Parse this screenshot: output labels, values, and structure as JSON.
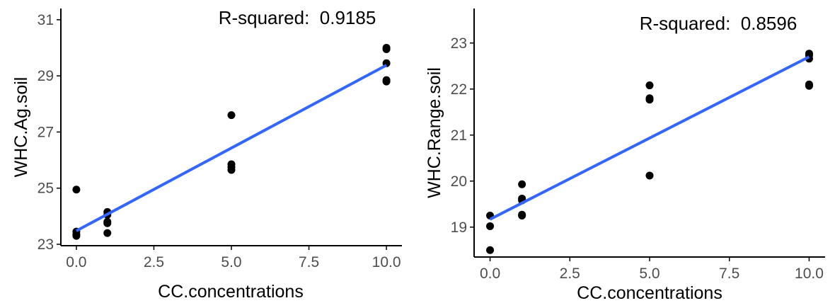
{
  "colors": {
    "points": "#000000",
    "fit_line": "#3366ff",
    "axis": "#000000",
    "tick_label": "#4d4d4d"
  },
  "chart_data": [
    {
      "type": "scatter",
      "title": "",
      "xlabel": "CC.concentrations",
      "ylabel": "WHC.Ag.soil",
      "annotation": "R-squared:  0.9185",
      "xlim": [
        -0.5,
        10.5
      ],
      "ylim": [
        22.95,
        31.4
      ],
      "x_ticks": [
        0,
        2.5,
        5,
        7.5,
        10
      ],
      "x_tick_labels": [
        "0.0",
        "2.5",
        "5.0",
        "7.5",
        "10.0"
      ],
      "y_ticks": [
        23,
        25,
        27,
        29,
        31
      ],
      "y_tick_labels": [
        "23",
        "25",
        "27",
        "29",
        "31"
      ],
      "grid": false,
      "points": [
        {
          "x": 0,
          "y": 24.95
        },
        {
          "x": 0,
          "y": 23.45
        },
        {
          "x": 0,
          "y": 23.35
        },
        {
          "x": 0,
          "y": 23.3
        },
        {
          "x": 1,
          "y": 24.15
        },
        {
          "x": 1,
          "y": 24.05
        },
        {
          "x": 1,
          "y": 23.8
        },
        {
          "x": 1,
          "y": 23.75
        },
        {
          "x": 1,
          "y": 23.4
        },
        {
          "x": 5,
          "y": 27.6
        },
        {
          "x": 5,
          "y": 25.85
        },
        {
          "x": 5,
          "y": 25.75
        },
        {
          "x": 5,
          "y": 25.65
        },
        {
          "x": 10,
          "y": 30.0
        },
        {
          "x": 10,
          "y": 29.95
        },
        {
          "x": 10,
          "y": 29.45
        },
        {
          "x": 10,
          "y": 28.85
        },
        {
          "x": 10,
          "y": 28.8
        }
      ],
      "fit_line": {
        "x": [
          0,
          10
        ],
        "y": [
          23.48,
          29.38
        ]
      }
    },
    {
      "type": "scatter",
      "title": "",
      "xlabel": "CC.concentrations",
      "ylabel": "WHC.Range.soil",
      "annotation": "R-squared:  0.8596",
      "xlim": [
        -0.5,
        10.5
      ],
      "ylim": [
        18.35,
        23.75
      ],
      "x_ticks": [
        0,
        2.5,
        5,
        7.5,
        10
      ],
      "x_tick_labels": [
        "0.0",
        "2.5",
        "5.0",
        "7.5",
        "10.0"
      ],
      "y_ticks": [
        19,
        20,
        21,
        22,
        23
      ],
      "y_tick_labels": [
        "19",
        "20",
        "21",
        "22",
        "23"
      ],
      "grid": false,
      "points": [
        {
          "x": 0,
          "y": 19.25
        },
        {
          "x": 0,
          "y": 19.02
        },
        {
          "x": 0,
          "y": 18.5
        },
        {
          "x": 1,
          "y": 19.93
        },
        {
          "x": 1,
          "y": 19.62
        },
        {
          "x": 1,
          "y": 19.58
        },
        {
          "x": 1,
          "y": 19.27
        },
        {
          "x": 1,
          "y": 19.25
        },
        {
          "x": 5,
          "y": 22.08
        },
        {
          "x": 5,
          "y": 21.8
        },
        {
          "x": 5,
          "y": 21.77
        },
        {
          "x": 5,
          "y": 20.12
        },
        {
          "x": 10,
          "y": 22.77
        },
        {
          "x": 10,
          "y": 22.73
        },
        {
          "x": 10,
          "y": 22.66
        },
        {
          "x": 10,
          "y": 22.1
        },
        {
          "x": 10,
          "y": 22.07
        }
      ],
      "fit_line": {
        "x": [
          0,
          10
        ],
        "y": [
          19.17,
          22.7
        ]
      }
    }
  ]
}
